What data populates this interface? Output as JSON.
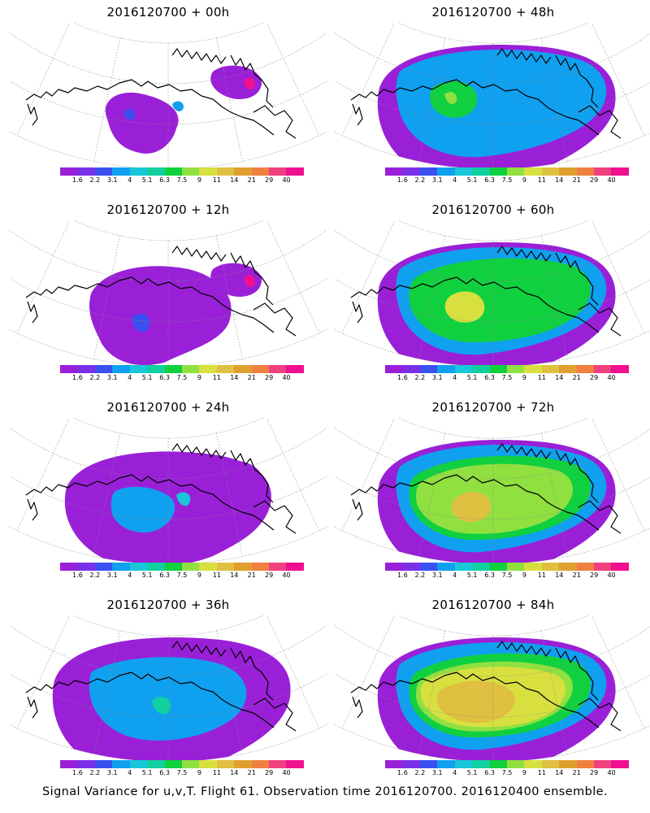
{
  "panels": [
    {
      "title": "2016120700 + 00h",
      "level": 0
    },
    {
      "title": "2016120700 + 48h",
      "level": 4
    },
    {
      "title": "2016120700 + 12h",
      "level": 1
    },
    {
      "title": "2016120700 + 60h",
      "level": 5
    },
    {
      "title": "2016120700 + 24h",
      "level": 2
    },
    {
      "title": "2016120700 + 72h",
      "level": 6
    },
    {
      "title": "2016120700 + 36h",
      "level": 3
    },
    {
      "title": "2016120700 + 84h",
      "level": 7
    }
  ],
  "colorbar": {
    "colors": [
      "#9a20d8",
      "#7a30e8",
      "#3a50f0",
      "#10a0f0",
      "#18c8d8",
      "#10d0a0",
      "#10d040",
      "#90e040",
      "#d8e040",
      "#e0c040",
      "#e0a030",
      "#f08040",
      "#f04080",
      "#f01090"
    ],
    "labels": [
      "1.6",
      "2.2",
      "3.1",
      "4",
      "5.1",
      "6.3",
      "7.5",
      "9",
      "11",
      "14",
      "21",
      "29",
      "40"
    ]
  },
  "footer": "Signal Variance for u,v,T. Flight 61. Observation time 2016120700. 2016120400 ensemble."
}
